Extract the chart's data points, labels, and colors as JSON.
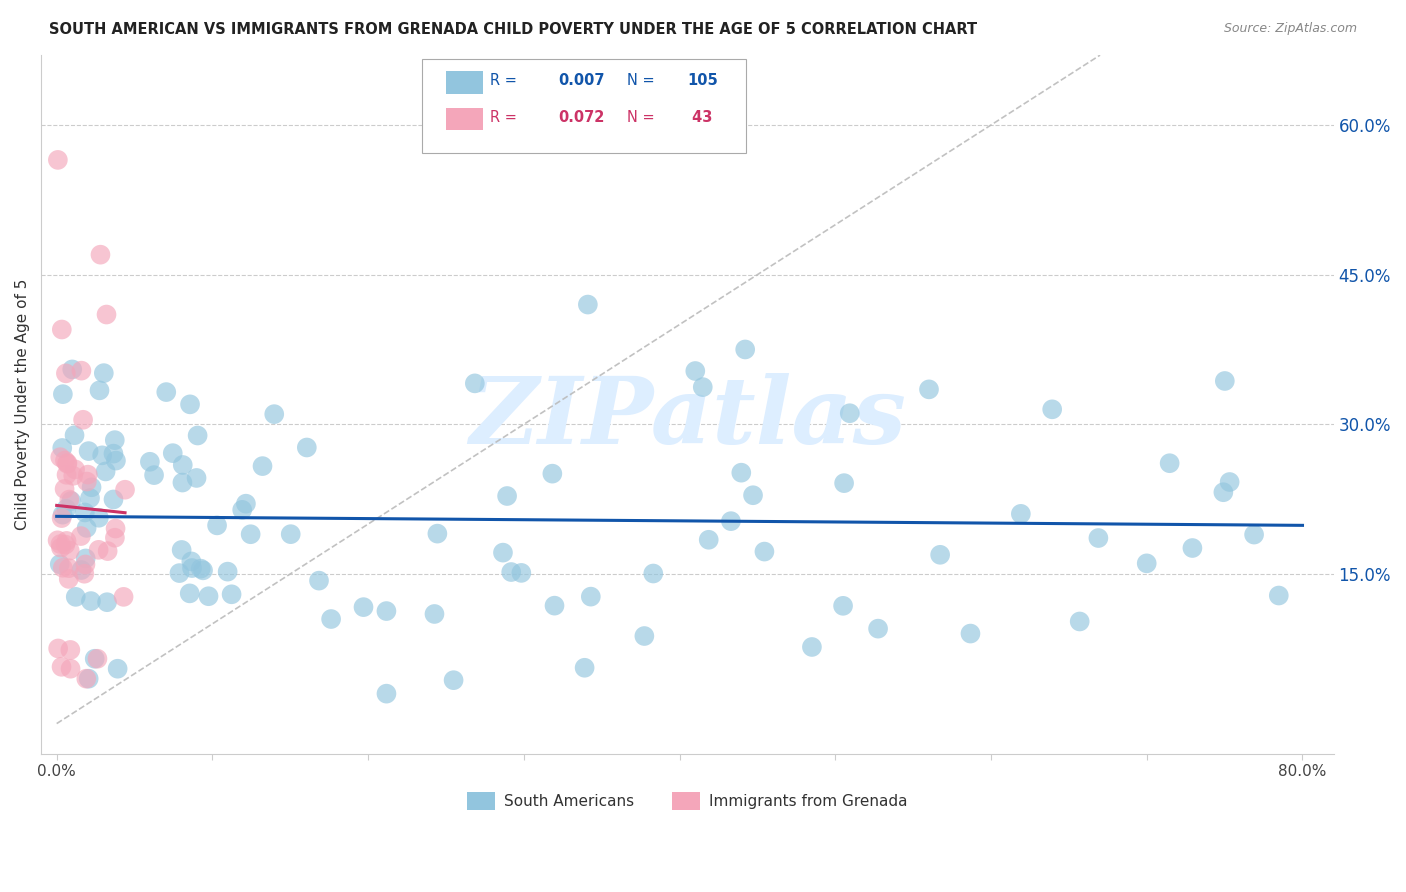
{
  "title": "SOUTH AMERICAN VS IMMIGRANTS FROM GRENADA CHILD POVERTY UNDER THE AGE OF 5 CORRELATION CHART",
  "source": "Source: ZipAtlas.com",
  "ylabel": "Child Poverty Under the Age of 5",
  "xlim": [
    -0.01,
    0.82
  ],
  "ylim": [
    -0.03,
    0.67
  ],
  "right_yticks": [
    0.6,
    0.45,
    0.3,
    0.15
  ],
  "right_yticklabels": [
    "60.0%",
    "45.0%",
    "30.0%",
    "15.0%"
  ],
  "blue_R": 0.007,
  "blue_N": 105,
  "pink_R": 0.072,
  "pink_N": 43,
  "blue_color": "#92c5de",
  "pink_color": "#f4a6ba",
  "blue_line_color": "#1155aa",
  "pink_line_color": "#cc3366",
  "legend_blue_label": "South Americans",
  "legend_pink_label": "Immigrants from Grenada",
  "background_color": "#ffffff",
  "grid_color": "#cccccc",
  "watermark_text": "ZIPatlas",
  "watermark_color": "#ddeeff",
  "figsize": [
    14.06,
    8.92
  ],
  "dpi": 100,
  "title_color": "#222222",
  "source_color": "#888888",
  "axis_label_color": "#333333",
  "tick_color": "#1155aa"
}
